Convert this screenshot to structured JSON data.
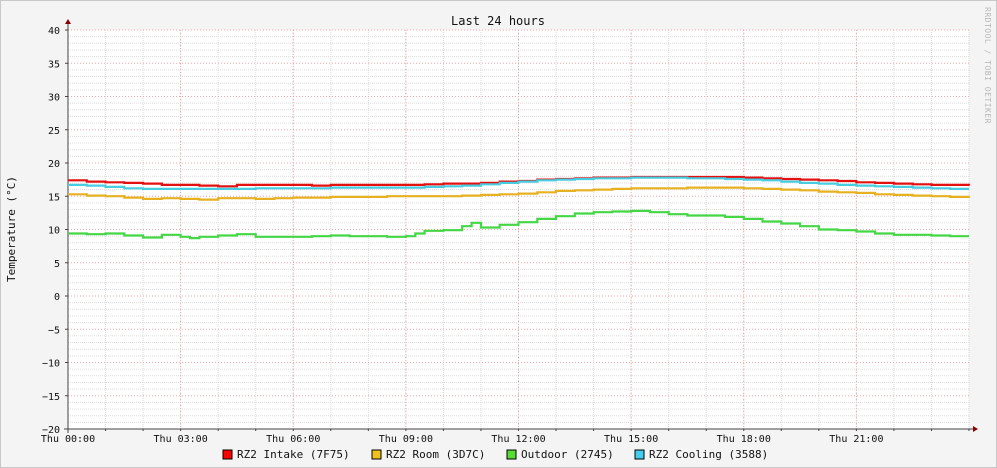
{
  "chart_data": {
    "type": "line",
    "title": "Last 24 hours",
    "ylabel": "Temperature (°C)",
    "xlabel": "",
    "watermark": "RRDTOOL / TOBI OETIKER",
    "ylim": [
      -20,
      40
    ],
    "ymajor": 5,
    "yminor": 1,
    "xlim_hours": [
      0,
      24
    ],
    "x_ticks": [
      {
        "hour": 0,
        "label": "Thu 00:00"
      },
      {
        "hour": 3,
        "label": "Thu 03:00"
      },
      {
        "hour": 6,
        "label": "Thu 06:00"
      },
      {
        "hour": 9,
        "label": "Thu 09:00"
      },
      {
        "hour": 12,
        "label": "Thu 12:00"
      },
      {
        "hour": 15,
        "label": "Thu 15:00"
      },
      {
        "hour": 18,
        "label": "Thu 18:00"
      },
      {
        "hour": 21,
        "label": "Thu 21:00"
      }
    ],
    "x_minor_hours": 1,
    "grid": true,
    "legend_position": "bottom",
    "series": [
      {
        "name": "RZ2 Intake (7F75)",
        "color": "#e41010",
        "legend_color": "#ff0000",
        "hours": [
          0,
          0.5,
          1,
          1.5,
          2,
          2.5,
          3,
          3.5,
          4,
          4.5,
          5,
          5.5,
          6,
          6.5,
          7,
          7.5,
          8,
          8.5,
          9,
          9.5,
          10,
          10.5,
          11,
          11.5,
          12,
          12.5,
          13,
          13.5,
          14,
          14.5,
          15,
          15.5,
          16,
          16.5,
          17,
          17.5,
          18,
          18.5,
          19,
          19.5,
          20,
          20.5,
          21,
          21.5,
          22,
          22.5,
          23,
          23.5,
          24
        ],
        "values": [
          17.4,
          17.2,
          17.1,
          17.0,
          16.9,
          16.7,
          16.7,
          16.6,
          16.5,
          16.7,
          16.7,
          16.7,
          16.7,
          16.6,
          16.7,
          16.7,
          16.7,
          16.7,
          16.7,
          16.8,
          16.9,
          16.9,
          17.0,
          17.2,
          17.3,
          17.5,
          17.6,
          17.7,
          17.8,
          17.8,
          17.9,
          17.9,
          17.9,
          17.9,
          17.9,
          17.9,
          17.8,
          17.7,
          17.6,
          17.5,
          17.4,
          17.3,
          17.1,
          17.0,
          16.9,
          16.8,
          16.7,
          16.7,
          16.6
        ]
      },
      {
        "name": "RZ2 Room (3D7C)",
        "color": "#e6b021",
        "legend_color": "#f0c020",
        "hours": [
          0,
          0.5,
          1,
          1.5,
          2,
          2.5,
          3,
          3.5,
          4,
          4.5,
          5,
          5.5,
          6,
          6.5,
          7,
          7.5,
          8,
          8.5,
          9,
          9.5,
          10,
          10.5,
          11,
          11.5,
          12,
          12.5,
          13,
          13.5,
          14,
          14.5,
          15,
          15.5,
          16,
          16.5,
          17,
          17.5,
          18,
          18.5,
          19,
          19.5,
          20,
          20.5,
          21,
          21.5,
          22,
          22.5,
          23,
          23.5,
          24
        ],
        "values": [
          15.3,
          15.1,
          15.0,
          14.8,
          14.6,
          14.7,
          14.6,
          14.5,
          14.7,
          14.7,
          14.6,
          14.7,
          14.8,
          14.8,
          14.9,
          14.9,
          14.9,
          15.0,
          15.0,
          15.0,
          15.0,
          15.1,
          15.2,
          15.3,
          15.4,
          15.6,
          15.8,
          15.9,
          16.0,
          16.1,
          16.2,
          16.2,
          16.2,
          16.3,
          16.3,
          16.3,
          16.2,
          16.1,
          16.0,
          15.9,
          15.7,
          15.6,
          15.5,
          15.3,
          15.2,
          15.1,
          15.0,
          14.9,
          14.8
        ]
      },
      {
        "name": "Outdoor (2745)",
        "color": "#44d644",
        "legend_color": "#55dd33",
        "hours": [
          0,
          0.5,
          1,
          1.5,
          2,
          2.5,
          3,
          3.25,
          3.5,
          4,
          4.5,
          5,
          5.5,
          6,
          6.5,
          7,
          7.5,
          8,
          8.5,
          9,
          9.25,
          9.5,
          10,
          10.5,
          10.75,
          11,
          11.5,
          12,
          12.5,
          13,
          13.5,
          14,
          14.5,
          15,
          15.5,
          16,
          16.5,
          17,
          17.5,
          18,
          18.5,
          19,
          19.5,
          20,
          20.5,
          21,
          21.5,
          22,
          22.5,
          23,
          23.5,
          24
        ],
        "values": [
          9.4,
          9.3,
          9.4,
          9.1,
          8.8,
          9.2,
          8.9,
          8.7,
          8.9,
          9.1,
          9.3,
          8.9,
          8.9,
          8.9,
          9.0,
          9.1,
          9.0,
          9.0,
          8.9,
          9.0,
          9.4,
          9.8,
          9.9,
          10.5,
          11.0,
          10.3,
          10.7,
          11.1,
          11.6,
          12.0,
          12.4,
          12.6,
          12.7,
          12.8,
          12.6,
          12.3,
          12.1,
          12.1,
          11.9,
          11.6,
          11.2,
          10.9,
          10.5,
          10.0,
          9.9,
          9.7,
          9.4,
          9.2,
          9.2,
          9.1,
          9.0,
          9.0
        ]
      },
      {
        "name": "RZ2 Cooling (3588)",
        "color": "#48cce0",
        "legend_color": "#44ccee",
        "hours": [
          0,
          0.5,
          1,
          1.5,
          2,
          2.5,
          3,
          3.5,
          4,
          4.5,
          5,
          5.5,
          6,
          6.5,
          7,
          7.5,
          8,
          8.5,
          9,
          9.5,
          10,
          10.5,
          11,
          11.5,
          12,
          12.5,
          13,
          13.5,
          14,
          14.5,
          15,
          15.5,
          16,
          16.5,
          17,
          17.5,
          18,
          18.5,
          19,
          19.5,
          20,
          20.5,
          21,
          21.5,
          22,
          22.5,
          23,
          23.5,
          24
        ],
        "values": [
          16.7,
          16.6,
          16.4,
          16.2,
          16.1,
          16.1,
          16.1,
          16.1,
          16.1,
          16.1,
          16.2,
          16.2,
          16.2,
          16.2,
          16.3,
          16.3,
          16.3,
          16.3,
          16.3,
          16.4,
          16.5,
          16.6,
          16.8,
          17.0,
          17.2,
          17.4,
          17.5,
          17.6,
          17.7,
          17.7,
          17.8,
          17.8,
          17.8,
          17.7,
          17.7,
          17.6,
          17.5,
          17.4,
          17.2,
          17.0,
          16.9,
          16.7,
          16.6,
          16.5,
          16.4,
          16.3,
          16.2,
          16.1,
          16.1
        ]
      }
    ]
  }
}
